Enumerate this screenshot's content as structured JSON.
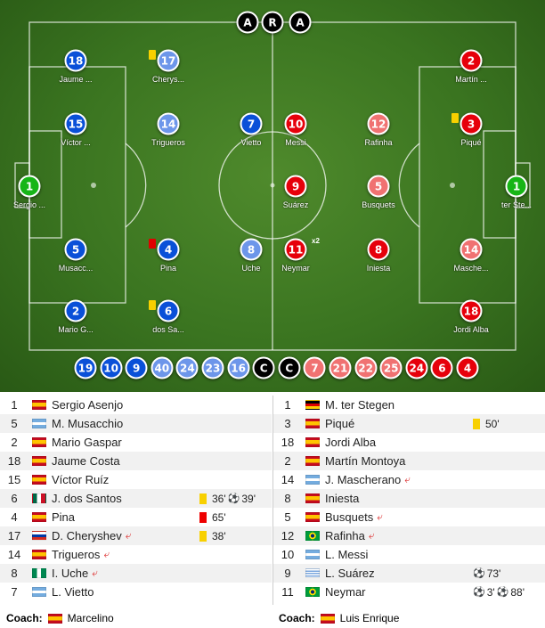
{
  "colors": {
    "home": "#0a50d8",
    "home_sub": "#6d96ea",
    "away": "#e6000b",
    "away_sub": "#f07272",
    "keeper": "#17b517",
    "official": "#000000",
    "yellow": "#f8d000",
    "red": "#e00000"
  },
  "officials": [
    "A",
    "R",
    "A"
  ],
  "home_players": [
    {
      "number": "18",
      "label": "Jaume ...",
      "style": "home"
    },
    {
      "number": "17",
      "label": "Cherys...",
      "style": "home_sub",
      "card": "yellow"
    },
    {
      "number": "15",
      "label": "Víctor ...",
      "style": "home"
    },
    {
      "number": "14",
      "label": "Trigueros",
      "style": "home_sub"
    },
    {
      "number": "7",
      "label": "Vietto",
      "style": "home"
    },
    {
      "number": "1",
      "label": "Sergio ...",
      "style": "keeper"
    },
    {
      "number": "5",
      "label": "Musacc...",
      "style": "home"
    },
    {
      "number": "4",
      "label": "Pina",
      "style": "home",
      "card": "red"
    },
    {
      "number": "8",
      "label": "Uche",
      "style": "home_sub"
    },
    {
      "number": "2",
      "label": "Mario G...",
      "style": "home"
    },
    {
      "number": "6",
      "label": "dos Sa...",
      "style": "home",
      "card": "yellow"
    }
  ],
  "away_players": [
    {
      "number": "2",
      "label": "Martín ...",
      "style": "away"
    },
    {
      "number": "10",
      "label": "Messi",
      "style": "away"
    },
    {
      "number": "12",
      "label": "Rafinha",
      "style": "away_sub"
    },
    {
      "number": "3",
      "label": "Piqué",
      "style": "away",
      "card": "yellow"
    },
    {
      "number": "9",
      "label": "Suárez",
      "style": "away"
    },
    {
      "number": "5",
      "label": "Busquets",
      "style": "away_sub"
    },
    {
      "number": "1",
      "label": "ter Ste...",
      "style": "keeper"
    },
    {
      "number": "11",
      "label": "Neymar",
      "style": "away",
      "badge": "x2"
    },
    {
      "number": "8",
      "label": "Iniesta",
      "style": "away"
    },
    {
      "number": "14",
      "label": "Masche...",
      "style": "away_sub"
    },
    {
      "number": "18",
      "label": "Jordi Alba",
      "style": "away"
    }
  ],
  "bench": [
    {
      "number": "19",
      "style": "home"
    },
    {
      "number": "10",
      "style": "home"
    },
    {
      "number": "9",
      "style": "home"
    },
    {
      "number": "40",
      "style": "home_sub"
    },
    {
      "number": "24",
      "style": "home_sub"
    },
    {
      "number": "23",
      "style": "home_sub"
    },
    {
      "number": "16",
      "style": "home_sub"
    },
    {
      "number": "C",
      "style": "official"
    },
    {
      "number": "C",
      "style": "official"
    },
    {
      "number": "7",
      "style": "away_sub"
    },
    {
      "number": "21",
      "style": "away_sub"
    },
    {
      "number": "22",
      "style": "away_sub"
    },
    {
      "number": "25",
      "style": "away_sub"
    },
    {
      "number": "24",
      "style": "away"
    },
    {
      "number": "6",
      "style": "away"
    },
    {
      "number": "4",
      "style": "away"
    }
  ],
  "home_lineup": [
    {
      "number": "1",
      "flag": "es",
      "name": "Sergio Asenjo"
    },
    {
      "number": "5",
      "flag": "ar",
      "name": "M. Musacchio"
    },
    {
      "number": "2",
      "flag": "es",
      "name": "Mario Gaspar"
    },
    {
      "number": "18",
      "flag": "es",
      "name": "Jaume Costa"
    },
    {
      "number": "15",
      "flag": "es",
      "name": "Víctor Ruíz"
    },
    {
      "number": "6",
      "flag": "mx",
      "name": "J. dos Santos",
      "events": [
        {
          "type": "yellow",
          "minute": "36'"
        },
        {
          "type": "goal",
          "minute": "39'"
        }
      ]
    },
    {
      "number": "4",
      "flag": "es",
      "name": "Pina",
      "events": [
        {
          "type": "red",
          "minute": "65'"
        }
      ]
    },
    {
      "number": "17",
      "flag": "ru",
      "name": "D. Cheryshev",
      "subbed": true,
      "events": [
        {
          "type": "yellow",
          "minute": "38'"
        }
      ]
    },
    {
      "number": "14",
      "flag": "es",
      "name": "Trigueros",
      "subbed": true
    },
    {
      "number": "8",
      "flag": "ng",
      "name": "I. Uche",
      "subbed": true
    },
    {
      "number": "7",
      "flag": "ar",
      "name": "L. Vietto"
    }
  ],
  "away_lineup": [
    {
      "number": "1",
      "flag": "de",
      "name": "M. ter Stegen"
    },
    {
      "number": "3",
      "flag": "es",
      "name": "Piqué",
      "events": [
        {
          "type": "yellow",
          "minute": "50'"
        }
      ]
    },
    {
      "number": "18",
      "flag": "es",
      "name": "Jordi Alba"
    },
    {
      "number": "2",
      "flag": "es",
      "name": "Martín Montoya"
    },
    {
      "number": "14",
      "flag": "ar",
      "name": "J. Mascherano",
      "subbed": true
    },
    {
      "number": "8",
      "flag": "es",
      "name": "Iniesta"
    },
    {
      "number": "5",
      "flag": "es",
      "name": "Busquets",
      "subbed": true
    },
    {
      "number": "12",
      "flag": "br",
      "name": "Rafinha",
      "subbed": true
    },
    {
      "number": "10",
      "flag": "ar",
      "name": "L. Messi"
    },
    {
      "number": "9",
      "flag": "uy",
      "name": "L. Suárez",
      "events": [
        {
          "type": "goal",
          "minute": "73'"
        }
      ]
    },
    {
      "number": "11",
      "flag": "br",
      "name": "Neymar",
      "events": [
        {
          "type": "goal",
          "minute": "3'"
        },
        {
          "type": "goal",
          "minute": "88'"
        }
      ]
    }
  ],
  "home_coach": {
    "label": "Coach:",
    "flag": "es",
    "name": "Marcelino"
  },
  "away_coach": {
    "label": "Coach:",
    "flag": "es",
    "name": "Luis Enrique"
  }
}
